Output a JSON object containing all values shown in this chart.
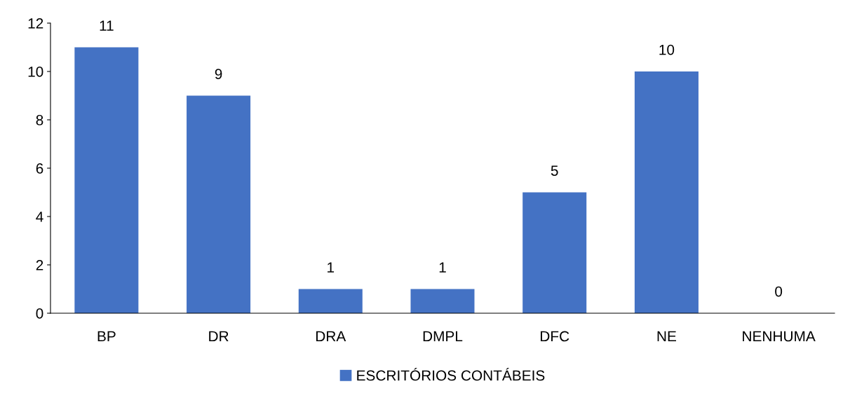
{
  "chart_data": {
    "type": "bar",
    "categories": [
      "BP",
      "DR",
      "DRA",
      "DMPL",
      "DFC",
      "NE",
      "NENHUMA"
    ],
    "series": [
      {
        "name": "ESCRITÓRIOS CONTÁBEIS",
        "color": "#4472c4",
        "values": [
          11,
          9,
          1,
          1,
          5,
          10,
          0
        ]
      }
    ],
    "ylim": [
      0,
      12
    ],
    "yticks": [
      0,
      2,
      4,
      6,
      8,
      10,
      12
    ],
    "data_labels": true,
    "legend": "bottom",
    "grid": false
  }
}
